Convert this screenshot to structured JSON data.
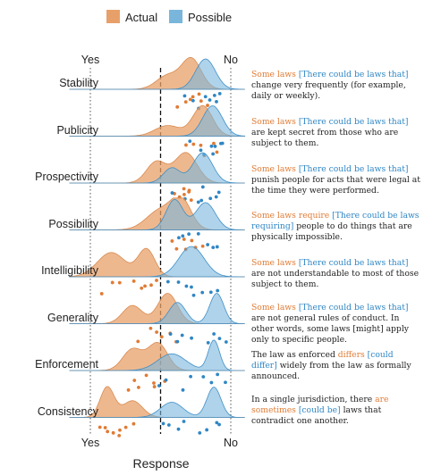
{
  "legend": {
    "actual": "Actual",
    "possible": "Possible"
  },
  "colors": {
    "actual": "#e8a06a",
    "possible": "#7ab6dc",
    "actual_text": "#e07b34",
    "possible_text": "#2f86c4",
    "overlap": "#9a9e96"
  },
  "chart_data": {
    "type": "ridgeline density with jittered points",
    "xlabel": "Response",
    "x_ticks": [
      "Yes",
      "No"
    ],
    "xlim": [
      0,
      1
    ],
    "midline": 0.5,
    "series": [
      "Actual",
      "Possible"
    ],
    "rows": [
      {
        "label": "Stability",
        "actual_peaks": [
          [
            0.55,
            0.45,
            0.08
          ],
          [
            0.72,
            1.0,
            0.07
          ]
        ],
        "possible_peaks": [
          [
            0.82,
            1.0,
            0.07
          ]
        ],
        "actual_points": [
          0.68,
          0.74,
          0.79,
          0.63,
          0.71,
          0.84,
          0.77
        ],
        "possible_points": [
          0.82,
          0.88,
          0.73,
          0.93,
          0.76,
          0.86,
          0.66,
          0.9
        ]
      },
      {
        "label": "Publicity",
        "actual_peaks": [
          [
            0.55,
            0.35,
            0.09
          ],
          [
            0.8,
            1.0,
            0.07
          ]
        ],
        "possible_peaks": [
          [
            0.87,
            1.0,
            0.07
          ]
        ],
        "actual_points": [
          0.73,
          0.82,
          0.88,
          0.68,
          0.91,
          0.79
        ],
        "possible_points": [
          0.82,
          0.88,
          0.93,
          0.86,
          0.78,
          0.95,
          0.71,
          0.9
        ]
      },
      {
        "label": "Prospectivity",
        "actual_peaks": [
          [
            0.47,
            0.7,
            0.07
          ],
          [
            0.68,
            1.0,
            0.08
          ]
        ],
        "possible_peaks": [
          [
            0.58,
            0.5,
            0.06
          ],
          [
            0.8,
            1.0,
            0.07
          ]
        ],
        "actual_points": [
          0.63,
          0.69,
          0.67,
          0.72,
          0.6,
          0.71,
          0.66
        ],
        "possible_points": [
          0.68,
          0.76,
          0.78,
          0.89,
          0.8,
          0.92,
          0.59,
          0.85
        ]
      },
      {
        "label": "Possibility",
        "actual_peaks": [
          [
            0.5,
            0.65,
            0.1
          ],
          [
            0.65,
            0.9,
            0.07
          ]
        ],
        "possible_peaks": [
          [
            0.6,
            1.0,
            0.06
          ],
          [
            0.82,
            0.9,
            0.07
          ]
        ],
        "actual_points": [
          0.62,
          0.68,
          0.72,
          0.69,
          0.75,
          0.58,
          0.81
        ],
        "possible_points": [
          0.62,
          0.67,
          0.83,
          0.87,
          0.91,
          0.71,
          0.78
        ]
      },
      {
        "label": "Intelligibility",
        "actual_peaks": [
          [
            0.15,
            0.8,
            0.1
          ],
          [
            0.4,
            0.9,
            0.06
          ]
        ],
        "possible_peaks": [
          [
            0.72,
            1.0,
            0.09
          ]
        ],
        "actual_points": [
          0.08,
          0.2,
          0.31,
          0.37,
          0.4,
          0.44,
          0.15,
          0.48
        ],
        "possible_points": [
          0.55,
          0.63,
          0.72,
          0.81,
          0.86,
          0.74,
          0.9,
          0.69
        ]
      },
      {
        "label": "Generality",
        "actual_peaks": [
          [
            0.3,
            0.6,
            0.07
          ],
          [
            0.55,
            1.0,
            0.07
          ]
        ],
        "possible_peaks": [
          [
            0.62,
            0.7,
            0.06
          ],
          [
            0.9,
            1.0,
            0.05
          ]
        ],
        "actual_points": [
          0.35,
          0.44,
          0.48,
          0.52,
          0.57,
          0.61
        ],
        "possible_points": [
          0.57,
          0.63,
          0.65,
          0.71,
          0.84,
          0.87,
          0.92,
          0.96
        ]
      },
      {
        "label": "Enforcement",
        "actual_peaks": [
          [
            0.3,
            0.7,
            0.07
          ],
          [
            0.48,
            0.9,
            0.07
          ]
        ],
        "possible_peaks": [
          [
            0.58,
            0.55,
            0.1
          ],
          [
            0.88,
            1.0,
            0.04
          ]
        ],
        "actual_points": [
          0.27,
          0.34,
          0.4,
          0.44,
          0.31,
          0.45,
          0.53
        ],
        "possible_points": [
          0.48,
          0.55,
          0.66,
          0.71,
          0.8,
          0.87,
          0.91,
          0.95
        ]
      },
      {
        "label": "Consistency",
        "actual_peaks": [
          [
            0.12,
            1.0,
            0.05
          ],
          [
            0.3,
            0.55,
            0.07
          ]
        ],
        "possible_peaks": [
          [
            0.58,
            0.5,
            0.08
          ],
          [
            0.88,
            1.0,
            0.05
          ]
        ],
        "actual_points": [
          0.08,
          0.13,
          0.17,
          0.21,
          0.25,
          0.3,
          0.11,
          0.2
        ],
        "possible_points": [
          0.53,
          0.56,
          0.63,
          0.67,
          0.79,
          0.83,
          0.89,
          0.92
        ]
      }
    ]
  },
  "descriptions": [
    {
      "act": "Some laws",
      "pos": "[There could be laws that]",
      "rest": "change very frequently (for example, daily or weekly)."
    },
    {
      "act": "Some laws",
      "pos": "[There could be laws that]",
      "rest": "are kept secret from those who are subject to them."
    },
    {
      "act": "Some laws",
      "pos": "[There could be laws that]",
      "rest": "punish people for acts that were legal at the time they were performed."
    },
    {
      "act": "Some laws require",
      "pos": "[There could be laws requiring]",
      "rest": "people to do things that are physically impossible."
    },
    {
      "act": "Some laws",
      "pos": "[There could be laws that]",
      "rest": "are not understandable to most of those subject to them."
    },
    {
      "act": "Some laws",
      "pos": "[There could be laws that]",
      "rest": "are not general rules of conduct. In other words, some laws [might] apply only to specific people."
    },
    {
      "pre": "The law as enforced",
      "act": "differs",
      "pos": "[could differ]",
      "rest": "widely from the law as formally announced."
    },
    {
      "pre": "In a single jurisdiction, there",
      "act": "are sometimes",
      "pos": "[could be]",
      "rest": "laws that contradict one another."
    }
  ]
}
